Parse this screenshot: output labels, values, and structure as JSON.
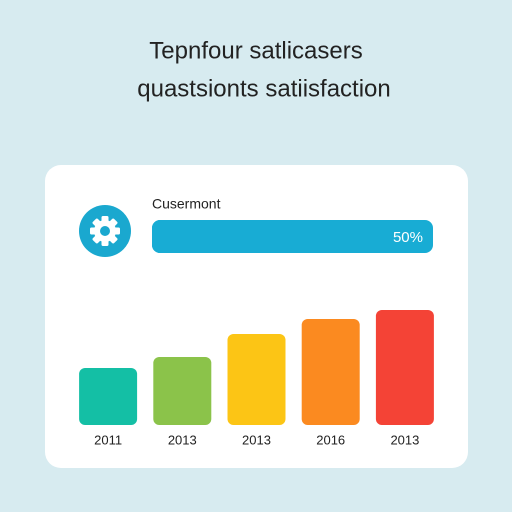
{
  "chart_data": {
    "type": "bar",
    "title_lines": [
      "Tepnfour satlicasers",
      "quastsionts satiisfaction"
    ],
    "progress": {
      "label": "Cusermont",
      "value": 50,
      "value_label": "50%",
      "color": "#18acd4"
    },
    "categories": [
      "2011",
      "2013",
      "2013",
      "2016",
      "2013"
    ],
    "values": [
      57,
      68,
      91,
      106,
      115
    ],
    "colors": [
      "#14bfa5",
      "#8bc34a",
      "#fcc515",
      "#fb8a20",
      "#f44336"
    ],
    "ylim": [
      0,
      120
    ]
  }
}
